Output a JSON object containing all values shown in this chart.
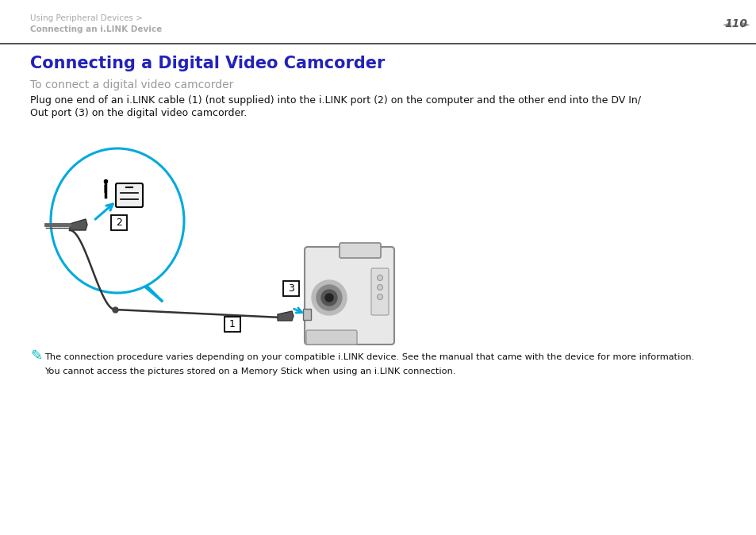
{
  "bg_color": "#ffffff",
  "header_breadcrumb1": "Using Peripheral Devices >",
  "header_breadcrumb2": "Connecting an i.LINK Device",
  "page_number": "110",
  "title": "Connecting a Digital Video Camcorder",
  "subtitle": "To connect a digital video camcorder",
  "body_line1": "Plug one end of an i.LINK cable (1) (not supplied) into the i.LINK port (2) on the computer and the other end into the DV In/",
  "body_line2": "Out port (3) on the digital video camcorder.",
  "note_text1": "The connection procedure varies depending on your compatible i.LINK device. See the manual that came with the device for more information.",
  "note_text2": "You cannot access the pictures stored on a Memory Stick when using an i.LINK connection.",
  "title_color": "#2222bb",
  "subtitle_color": "#999999",
  "body_color": "#111111",
  "breadcrumb_color": "#aaaaaa",
  "page_num_color": "#888888",
  "note_color": "#111111",
  "header_line_color": "#333333",
  "cyan_color": "#00bbbb",
  "blue_oval_color": "#00aadd",
  "arrow_color": "#00aadd"
}
